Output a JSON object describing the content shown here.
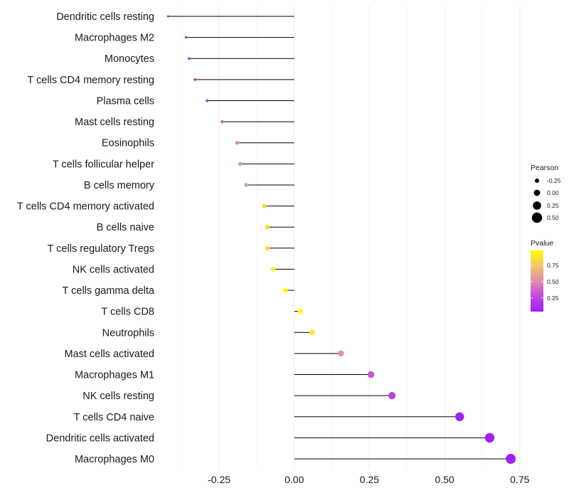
{
  "chart_data": {
    "type": "lollipop",
    "title": "",
    "xlabel": "",
    "ylabel": "",
    "xlim": [
      -0.43,
      0.76
    ],
    "xticks": [
      -0.25,
      0,
      0.25,
      0.5,
      0.75
    ],
    "xtick_labels": [
      "-0.25",
      "0.00",
      "0.25",
      "0.50",
      "0.75"
    ],
    "grid": true,
    "categories": [
      "Dendritic cells resting",
      "Macrophages M2",
      "Monocytes",
      "T cells CD4 memory resting",
      "Plasma cells",
      "Mast cells resting",
      "Eosinophils",
      "T cells follicular helper",
      "B cells memory",
      "T cells CD4 memory activated",
      "B cells naive",
      "T cells regulatory  Tregs ",
      "NK cells activated",
      "T cells gamma delta",
      "T cells CD8",
      "Neutrophils",
      "Mast cells activated",
      "Macrophages M1",
      "NK cells resting",
      "T cells CD4 naive",
      "Dendritic cells activated",
      "Macrophages M0"
    ],
    "pearson": [
      -0.42,
      -0.36,
      -0.35,
      -0.33,
      -0.29,
      -0.24,
      -0.19,
      -0.18,
      -0.16,
      -0.1,
      -0.09,
      -0.09,
      -0.07,
      -0.03,
      0.02,
      0.06,
      0.155,
      0.255,
      0.325,
      0.55,
      0.65,
      0.72
    ],
    "pvalue": [
      0.05,
      0.12,
      0.14,
      0.16,
      0.22,
      0.4,
      0.5,
      0.52,
      0.56,
      0.82,
      0.84,
      0.84,
      0.9,
      0.96,
      0.98,
      0.9,
      0.52,
      0.32,
      0.22,
      0.05,
      0.04,
      0.05
    ],
    "legend_size": {
      "title": "Pearson",
      "entries": [
        {
          "label": "-0.25",
          "value": -0.25
        },
        {
          "label": "0.00",
          "value": 0.0
        },
        {
          "label": "0.25",
          "value": 0.25
        },
        {
          "label": "0.50",
          "value": 0.5
        }
      ]
    },
    "legend_color": {
      "title": "Pvalue",
      "low_color": "#a020f0",
      "high_color": "#ffff00",
      "ticks": [
        {
          "label": "0.75",
          "value": 0.75
        },
        {
          "label": "0.50",
          "value": 0.5
        },
        {
          "label": "0.25",
          "value": 0.25
        }
      ],
      "range": [
        0.04,
        0.98
      ]
    },
    "legend_position": "right"
  }
}
